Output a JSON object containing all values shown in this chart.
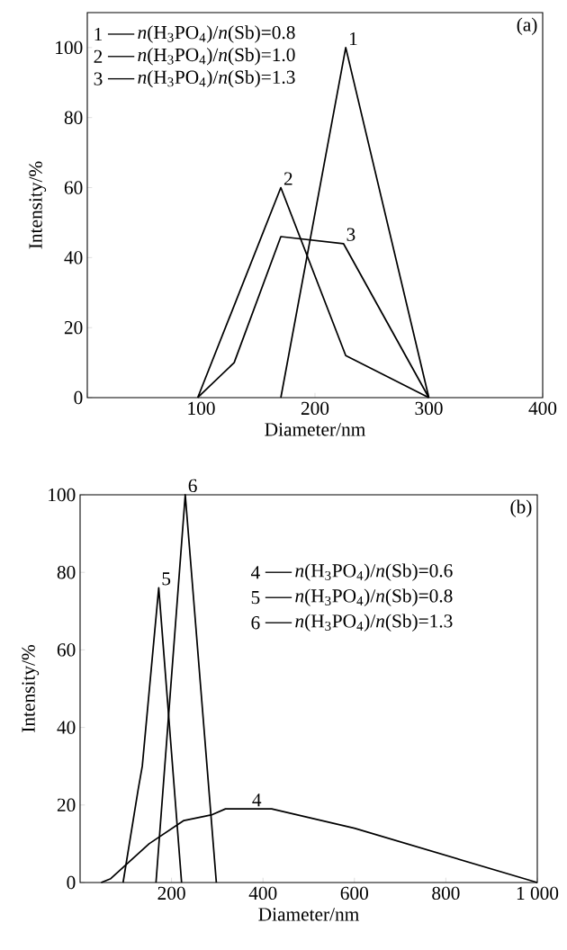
{
  "chart_data": [
    {
      "type": "line",
      "xlabel": "Diameter/nm",
      "ylabel": "Intensity/%",
      "xlim": [
        0,
        400
      ],
      "ylim": [
        0,
        110
      ],
      "xticks": [
        {
          "value": 0,
          "label": null
        },
        100,
        200,
        300,
        400
      ],
      "yticks": [
        0,
        20,
        40,
        60,
        80,
        100
      ],
      "legend": "top left",
      "series": [
        {
          "name": "*n*(H$_{3}$PO$_{4}$)/*n*(Sb)=0.8",
          "color": "#000000",
          "x": [
            170,
            227,
            300
          ],
          "values": [
            0,
            100,
            0
          ]
        },
        {
          "name": "*n*(H$_{3}$PO$_{4}$)/*n*(Sb)=1.0",
          "color": "#000000",
          "x": [
            97,
            170,
            227,
            300
          ],
          "values": [
            0,
            60,
            12,
            0
          ]
        },
        {
          "name": "*n*(H$_{3}$PO$_{4}$)/*n*(Sb)=1.3",
          "color": "#000000",
          "x": [
            97,
            129,
            170,
            225,
            300
          ],
          "values": [
            0,
            10,
            46,
            44,
            0
          ]
        }
      ],
      "annotations": [
        "(a)",
        {
          "text": "1",
          "x": 227,
          "y": 100
        },
        {
          "text": "2",
          "x": 170,
          "y": 60
        },
        {
          "text": "3",
          "x": 225,
          "y": 44
        }
      ]
    },
    {
      "type": "line",
      "xlabel": "Diameter/nm",
      "ylabel": "Intensity/%",
      "xlim": [
        0,
        1000
      ],
      "ylim": [
        0,
        100
      ],
      "xticks": [
        200,
        400,
        600,
        800,
        {
          "value": 1000,
          "label": "1 000"
        }
      ],
      "yticks": [
        0,
        20,
        40,
        60,
        80,
        100
      ],
      "legend": "right",
      "series": [
        {
          "name": "*n*(H$_{3}$PO$_{4}$)/*n*(Sb)=0.6",
          "color": "#000000",
          "x": [
            46,
            67,
            151,
            227,
            289,
            318,
            419,
            600,
            1000
          ],
          "values": [
            0,
            1,
            10,
            16,
            17.5,
            19,
            19,
            14,
            0
          ]
        },
        {
          "name": "*n*(H$_{3}$PO$_{4}$)/*n*(Sb)=0.8",
          "color": "#000000",
          "x": [
            94,
            127,
            136,
            172,
            222
          ],
          "values": [
            0,
            24,
            30,
            76,
            0
          ]
        },
        {
          "name": "*n*(H$_{3}$PO$_{4}$)/*n*(Sb)=1.3",
          "color": "#000000",
          "x": [
            166,
            230,
            298
          ],
          "values": [
            0,
            100,
            0
          ]
        }
      ],
      "annotations": [
        "(b)",
        {
          "text": "4",
          "x": 370,
          "y": 19
        },
        {
          "text": "5",
          "x": 172,
          "y": 76
        },
        {
          "text": "6",
          "x": 230,
          "y": 100
        }
      ]
    }
  ]
}
